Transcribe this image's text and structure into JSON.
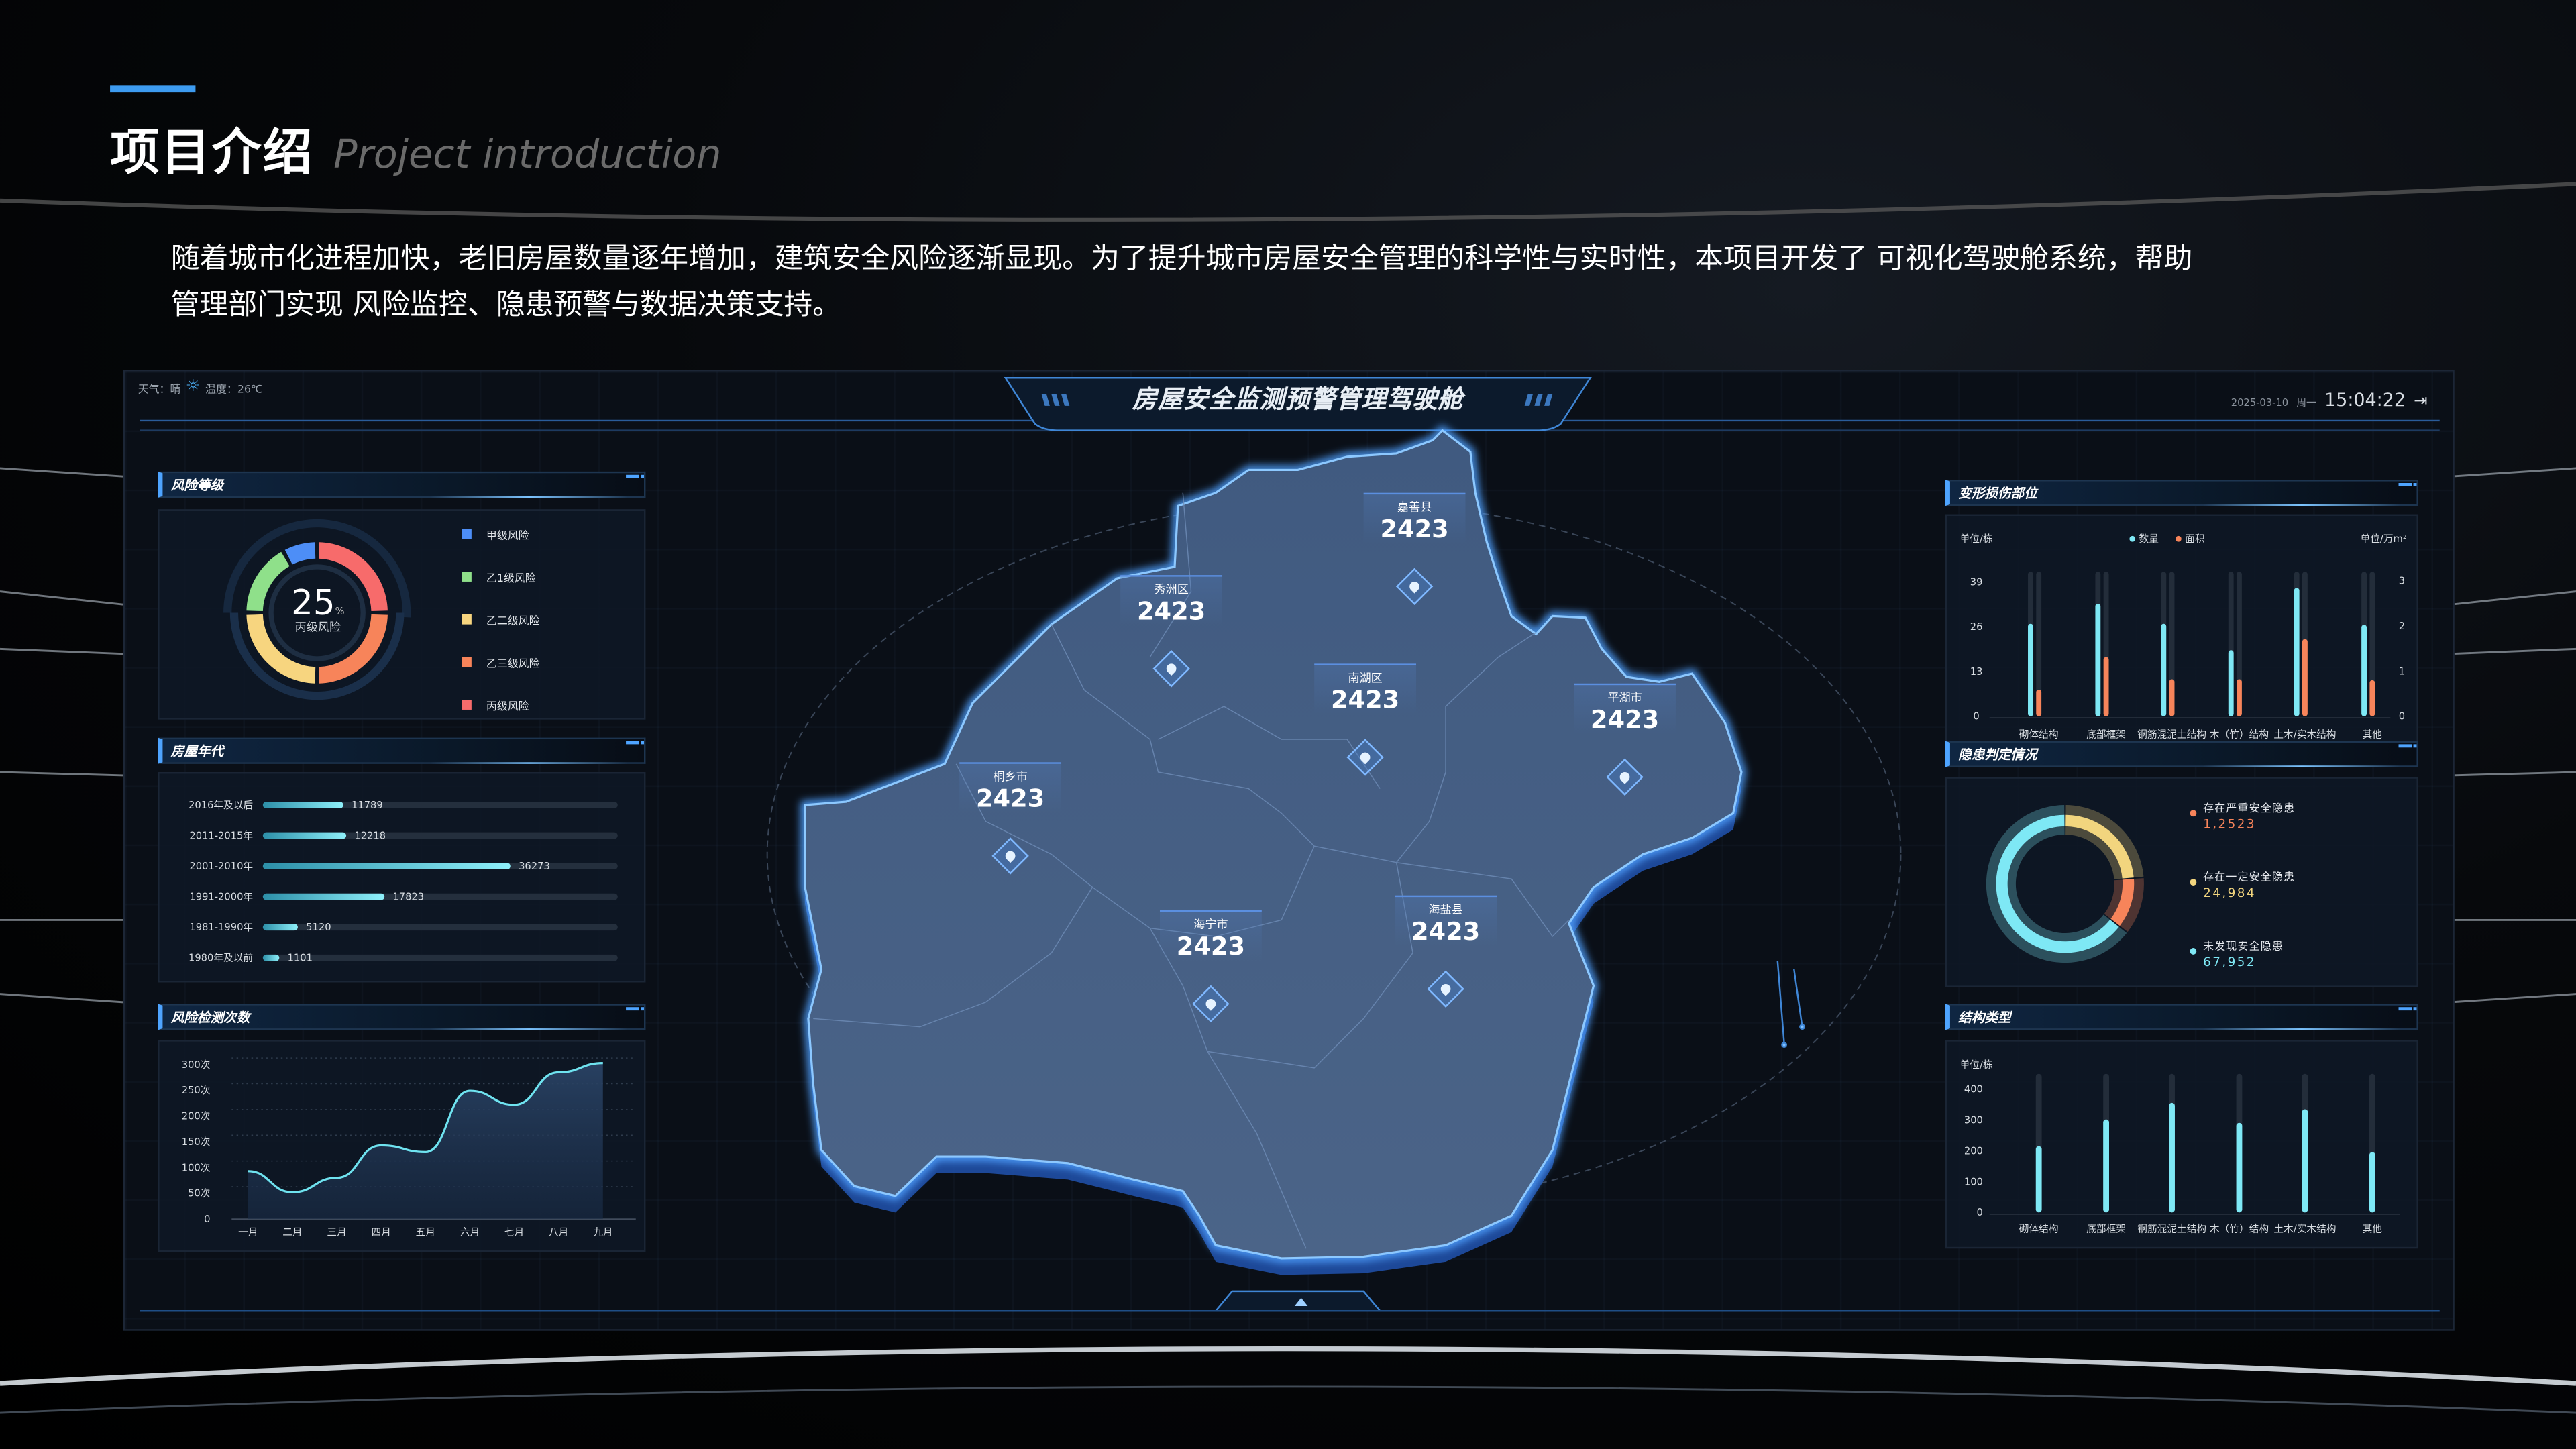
{
  "page": {
    "title": "项目介绍",
    "subtitle": "Project introduction",
    "intro_line1": "随着城市化进程加快，老旧房屋数量逐年增加，建筑安全风险逐渐显现。为了提升城市房屋安全管理的科学性与实时性，本项目开发了 可视化驾驶舱系统，帮助",
    "intro_line2": "管理部门实现 风险监控、隐患预警与数据决策支持。",
    "accent_color": "#3d9bf0"
  },
  "dashboard": {
    "title": "房屋安全监测预警管理驾驶舱",
    "weather_label": "天气：晴",
    "weather_icon": "sun-icon",
    "temperature_label": "温度：26℃",
    "date": "2025-03-10",
    "weekday": "周一",
    "time": "15:04:22",
    "logout_icon": "logout-icon"
  },
  "risk_level": {
    "title": "风险等级",
    "center_value": "25",
    "center_unit": "%",
    "center_label": "丙级风险",
    "chart_data": {
      "type": "pie",
      "categories": [
        "甲级风险",
        "乙1级风险",
        "乙二级风险",
        "乙三级风险",
        "丙级风险"
      ],
      "values": [
        8,
        17,
        25,
        25,
        25
      ],
      "colors": [
        "#4d8ef7",
        "#8fe08a",
        "#f7d57f",
        "#f7845a",
        "#f76b6b"
      ],
      "legend": "right"
    }
  },
  "house_age": {
    "title": "房屋年代",
    "chart_data": {
      "type": "bar",
      "orientation": "horizontal",
      "categories": [
        "2016年及以后",
        "2011-2015年",
        "2001-2010年",
        "1991-2000年",
        "1981-1990年",
        "1980年及以前"
      ],
      "values": [
        11789,
        12218,
        36273,
        17823,
        5120,
        1101
      ]
    }
  },
  "risk_checks": {
    "title": "风险检测次数",
    "chart_data": {
      "type": "area",
      "categories": [
        "一月",
        "二月",
        "三月",
        "四月",
        "五月",
        "六月",
        "七月",
        "八月",
        "九月"
      ],
      "values": [
        93,
        52,
        80,
        143,
        130,
        249,
        222,
        285,
        303
      ],
      "yticks": [
        "0",
        "50次",
        "100次",
        "150次",
        "200次",
        "250次",
        "300次"
      ],
      "ylim": [
        0,
        300
      ],
      "grid": "horizontal dotted",
      "color": "#6fe3f0"
    }
  },
  "deformation": {
    "title": "变形损伤部位",
    "left_unit": "单位/栋",
    "right_unit": "单位/万m²",
    "chart_data": {
      "type": "bar",
      "categories": [
        "砌体结构",
        "底部框架",
        "钢筋混泥土结构",
        "木（竹）结构",
        "土木/实木结构",
        "其他"
      ],
      "series": [
        {
          "name": "数量",
          "values": [
            26.9,
            32.7,
            26.9,
            19.2,
            37.3,
            26.6
          ],
          "color": "#7ee8f5",
          "axis": "left"
        },
        {
          "name": "面积",
          "values": [
            0.59,
            1.31,
            0.82,
            0.82,
            1.71,
            0.8
          ],
          "color": "#f7845a",
          "axis": "right"
        }
      ],
      "yticks_left": [
        "0",
        "13",
        "26",
        "39"
      ],
      "yticks_right": [
        "0",
        "1",
        "2",
        "3"
      ],
      "ylim_left": [
        0,
        42
      ],
      "ylim_right": [
        0,
        3.2
      ],
      "legend": "top-center"
    }
  },
  "hazards": {
    "title": "隐患判定情况",
    "chart_data": {
      "type": "pie",
      "items": [
        {
          "label": "存在严重安全隐患",
          "value_text": "1,2523",
          "value": 12523,
          "color": "#f7845a"
        },
        {
          "label": "存在一定安全隐患",
          "value_text": "24,984",
          "value": 24984,
          "color": "#f2d57e"
        },
        {
          "label": "未发现安全隐患",
          "value_text": "67,952",
          "value": 67952,
          "color": "#7ee8f5"
        }
      ],
      "legend": "right"
    }
  },
  "structure": {
    "title": "结构类型",
    "unit": "单位/栋",
    "chart_data": {
      "type": "bar",
      "categories": [
        "砌体结构",
        "底部框架",
        "钢筋混泥土结构",
        "木（竹）结构",
        "土木/实木结构",
        "其他"
      ],
      "values": [
        215,
        302,
        356,
        291,
        335,
        196
      ],
      "yticks": [
        "0",
        "100",
        "200",
        "300",
        "400"
      ],
      "ylim": [
        0,
        450
      ],
      "color": "#7ee8f5"
    }
  },
  "map": {
    "regions": [
      {
        "name": "嘉善县",
        "count": "2423"
      },
      {
        "name": "秀洲区",
        "count": "2423"
      },
      {
        "name": "南湖区",
        "count": "2423"
      },
      {
        "name": "平湖市",
        "count": "2423"
      },
      {
        "name": "桐乡市",
        "count": "2423"
      },
      {
        "name": "海宁市",
        "count": "2423"
      },
      {
        "name": "海盐县",
        "count": "2423"
      }
    ],
    "pin_icon": "location-pin-icon"
  }
}
